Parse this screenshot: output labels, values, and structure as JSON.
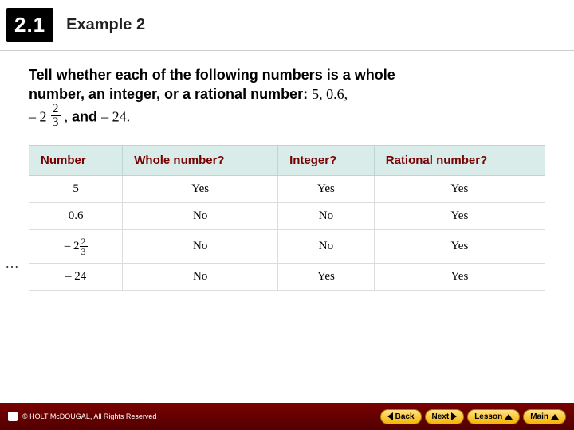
{
  "header": {
    "section_number": "2.1",
    "example_label": "Example 2"
  },
  "prompt": {
    "line1_bold": "Tell whether each of the following numbers is a whole",
    "line2_bold_pre": "number, an integer, or a rational number:",
    "num_list_a": "5, 0.6,",
    "mixed_neg": "– 2",
    "mixed_frac_num": "2",
    "mixed_frac_den": "3",
    "sep": ",",
    "and_word": "and",
    "last_num": "– 24."
  },
  "table": {
    "headers": [
      "Number",
      "Whole number?",
      "Integer?",
      "Rational number?"
    ],
    "rows": [
      {
        "label_type": "plain",
        "label": "5",
        "whole": "Yes",
        "integer": "Yes",
        "rational": "Yes"
      },
      {
        "label_type": "plain",
        "label": "0.6",
        "whole": "No",
        "integer": "No",
        "rational": "Yes"
      },
      {
        "label_type": "mixed",
        "neg": "–",
        "whole_part": "2",
        "num": "2",
        "den": "3",
        "whole": "No",
        "integer": "No",
        "rational": "Yes"
      },
      {
        "label_type": "neg",
        "label": "– 24",
        "whole": "No",
        "integer": "Yes",
        "rational": "Yes"
      }
    ],
    "header_bg": "#d9ece9",
    "header_color": "#770000",
    "cell_border": "#dcdcdc"
  },
  "footer": {
    "copyright": "HOLT McDOUGAL, All Rights Reserved",
    "buttons": {
      "back": "Back",
      "next": "Next",
      "lesson": "Lesson",
      "main": "Main"
    },
    "bg_top": "#7a0000",
    "bg_bottom": "#520000",
    "btn_bg_top": "#ffe28a",
    "btn_bg_bottom": "#f5b400"
  }
}
